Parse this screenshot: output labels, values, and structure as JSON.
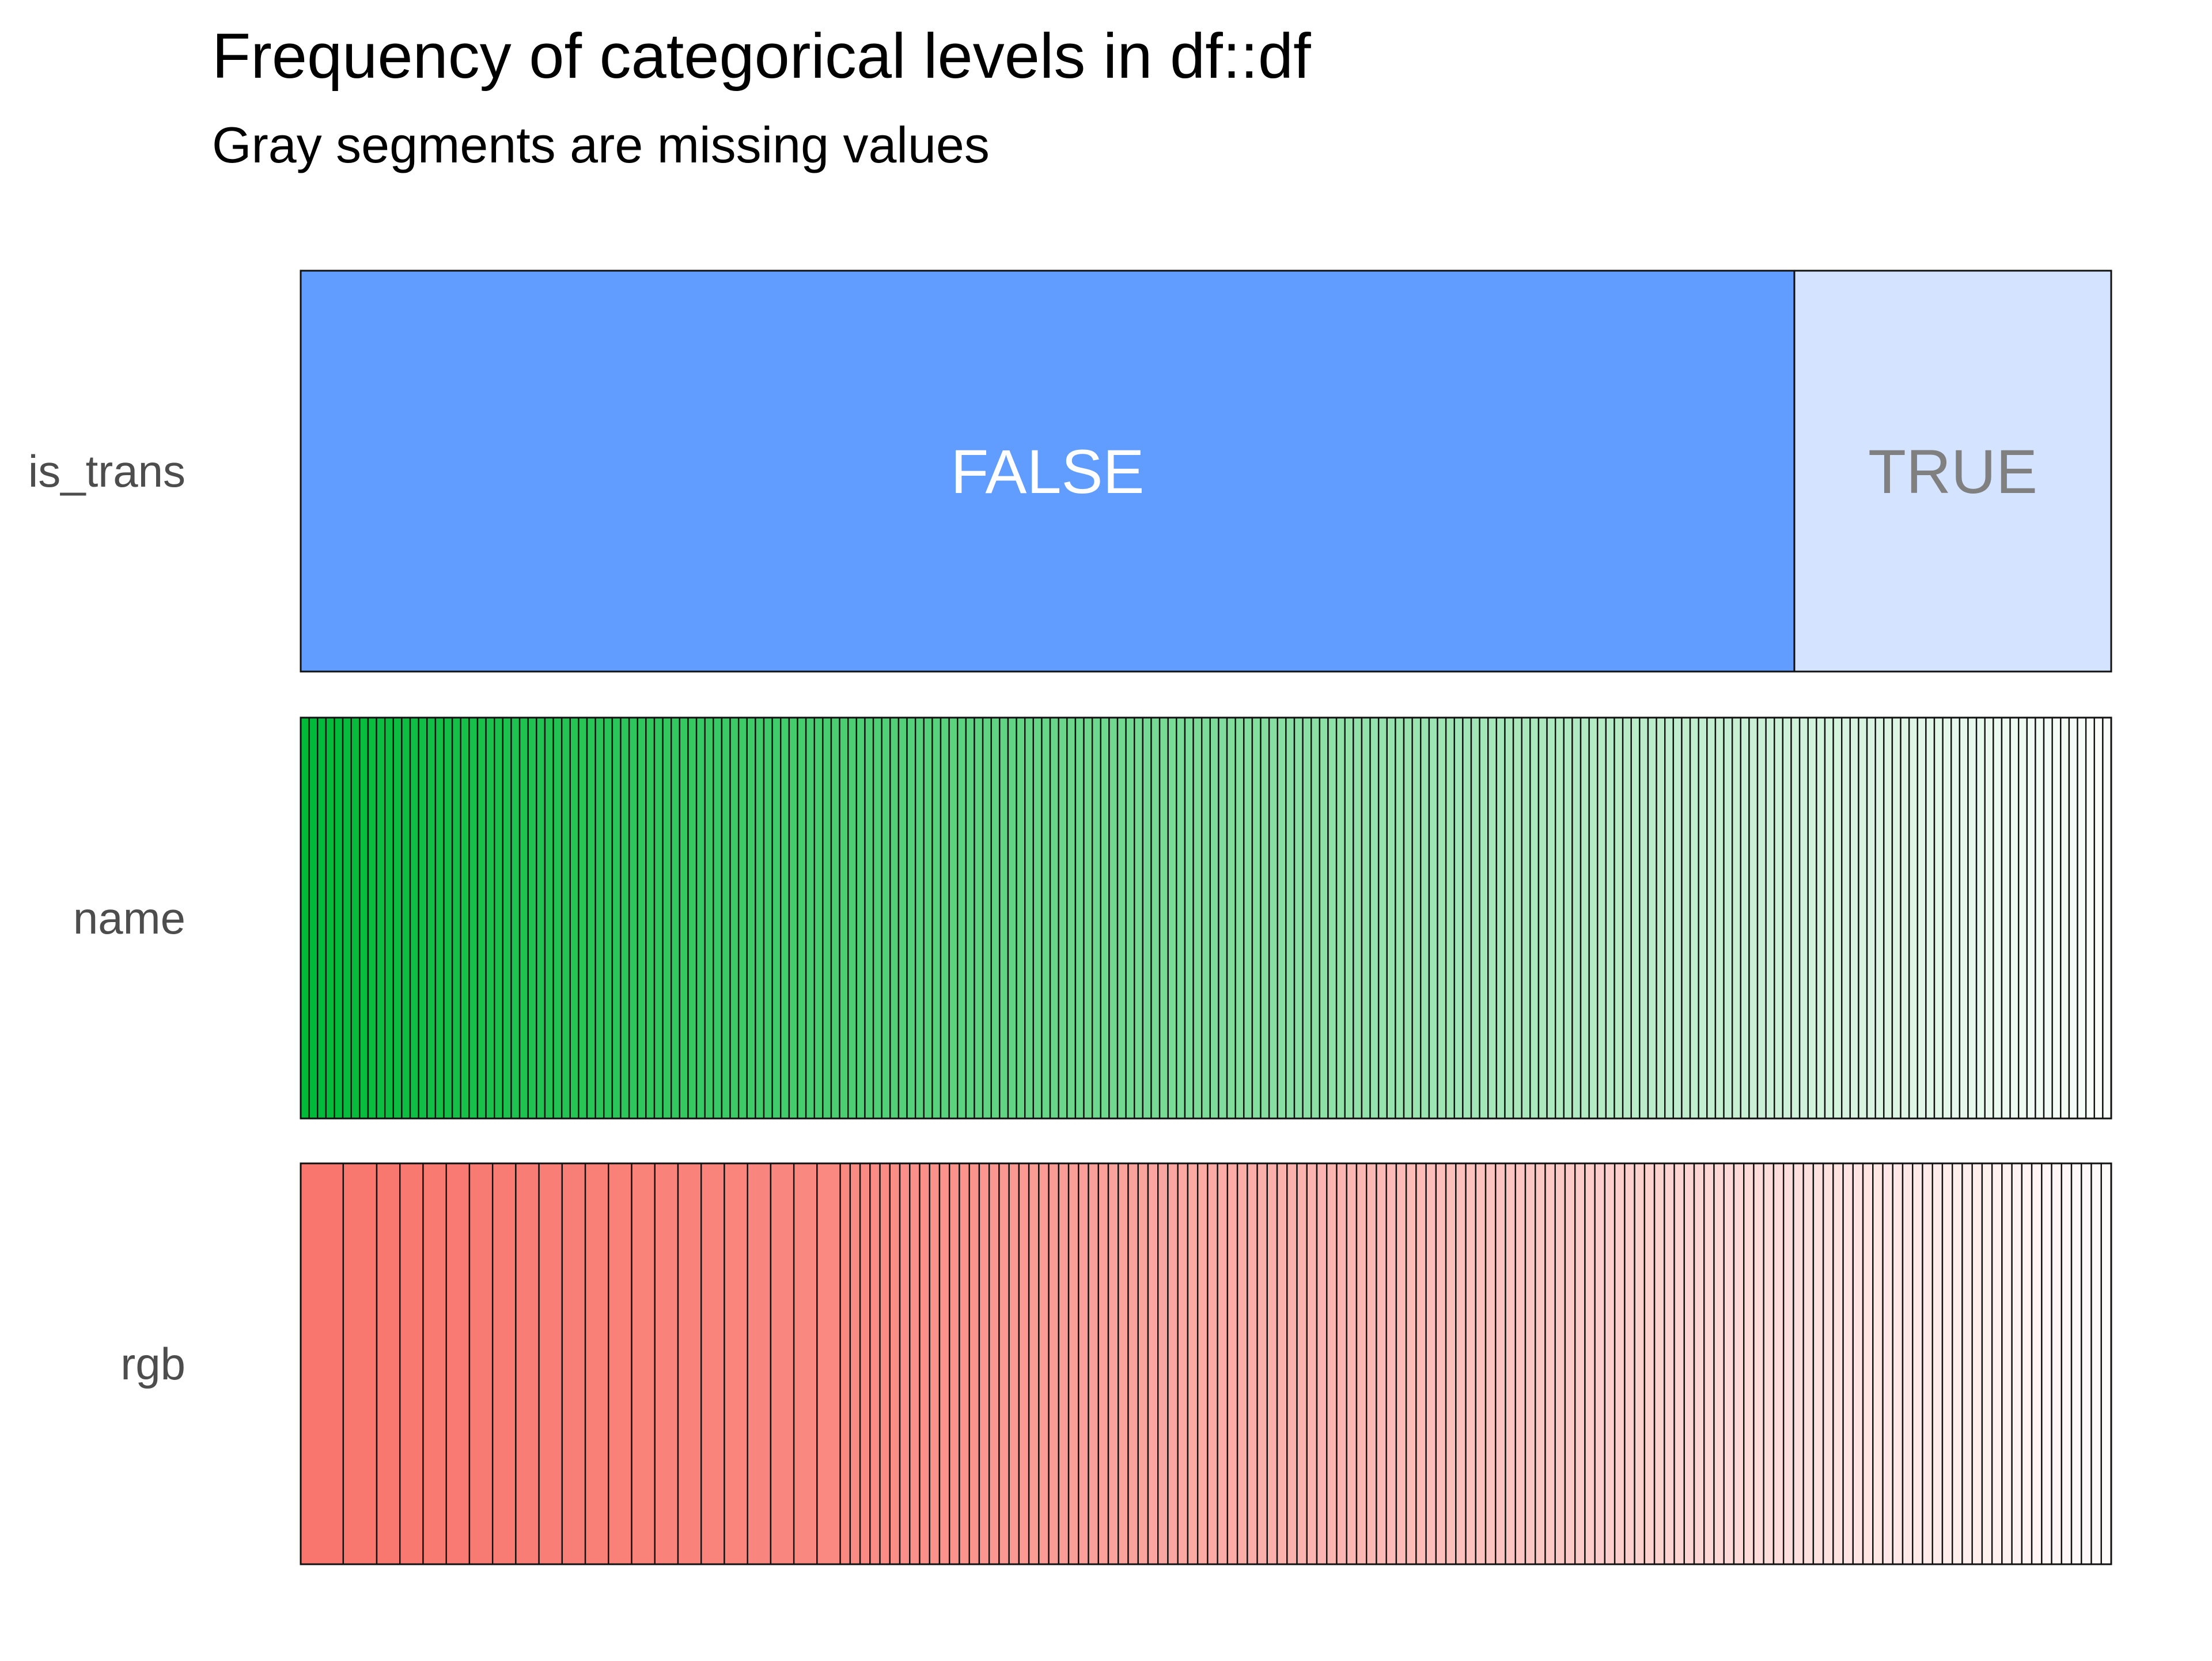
{
  "chart_data": {
    "type": "bar",
    "orientation": "horizontal-stacked-proportion",
    "title": "Frequency of categorical levels in df::df",
    "subtitle": "Gray segments are missing values",
    "rows": [
      {
        "name": "is_trans",
        "base_color": "#619CFF",
        "levels": [
          {
            "label": "FALSE",
            "proportion": 0.825,
            "color": "#619CFF",
            "label_color": "#FFFFFF"
          },
          {
            "label": "TRUE",
            "proportion": 0.175,
            "color": "#D4E3FF",
            "label_color": "#808080"
          }
        ]
      },
      {
        "name": "name",
        "base_color": "#00BA38",
        "n_levels": 215,
        "distribution": "uniform"
      },
      {
        "name": "rgb",
        "base_color": "#F8766D",
        "n_levels": 150,
        "leading_proportions": [
          0.0235,
          0.0185,
          0.0128,
          0.0128,
          0.0128,
          0.0128,
          0.0128,
          0.0128,
          0.0128,
          0.0128,
          0.0128,
          0.0128,
          0.0128,
          0.0128,
          0.0128,
          0.0128,
          0.0128,
          0.0128,
          0.0128,
          0.0128,
          0.0128,
          0.0128
        ],
        "distribution": "remaining levels share the rest equally"
      }
    ],
    "missing_color": "#808080",
    "legend": "none",
    "grid": false
  }
}
